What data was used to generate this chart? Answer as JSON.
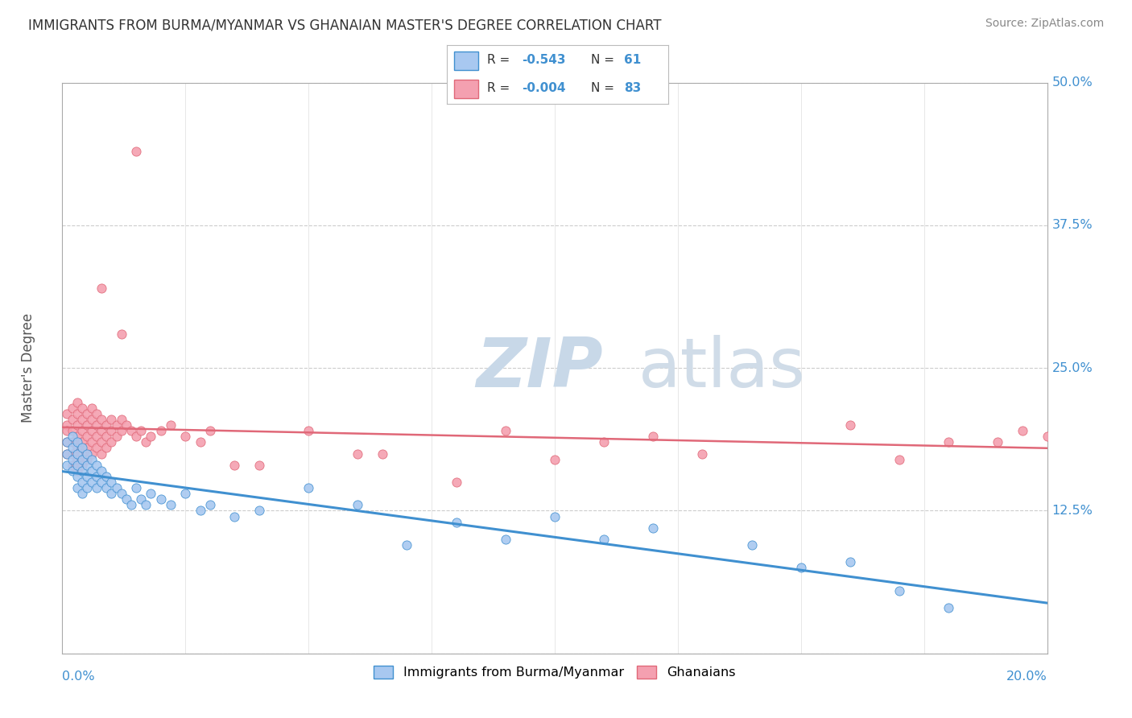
{
  "title": "IMMIGRANTS FROM BURMA/MYANMAR VS GHANAIAN MASTER'S DEGREE CORRELATION CHART",
  "source": "Source: ZipAtlas.com",
  "legend_label1": "Immigrants from Burma/Myanmar",
  "legend_label2": "Ghanaians",
  "R1": -0.543,
  "N1": 61,
  "R2": -0.004,
  "N2": 83,
  "color_blue": "#a8c8f0",
  "color_pink": "#f4a0b0",
  "color_blue_line": "#4090d0",
  "color_pink_line": "#e06878",
  "color_title": "#333333",
  "color_axis_label": "#4090d0",
  "color_source": "#888888",
  "background": "#ffffff",
  "xmin": 0.0,
  "xmax": 0.2,
  "ymin": 0.0,
  "ymax": 0.5,
  "blue_x": [
    0.001,
    0.001,
    0.001,
    0.002,
    0.002,
    0.002,
    0.002,
    0.003,
    0.003,
    0.003,
    0.003,
    0.003,
    0.004,
    0.004,
    0.004,
    0.004,
    0.004,
    0.005,
    0.005,
    0.005,
    0.005,
    0.006,
    0.006,
    0.006,
    0.007,
    0.007,
    0.007,
    0.008,
    0.008,
    0.009,
    0.009,
    0.01,
    0.01,
    0.011,
    0.012,
    0.013,
    0.014,
    0.015,
    0.016,
    0.017,
    0.018,
    0.02,
    0.022,
    0.025,
    0.028,
    0.03,
    0.035,
    0.04,
    0.05,
    0.06,
    0.07,
    0.08,
    0.09,
    0.1,
    0.11,
    0.12,
    0.14,
    0.15,
    0.16,
    0.17,
    0.18
  ],
  "blue_y": [
    0.185,
    0.175,
    0.165,
    0.19,
    0.18,
    0.17,
    0.16,
    0.185,
    0.175,
    0.165,
    0.155,
    0.145,
    0.18,
    0.17,
    0.16,
    0.15,
    0.14,
    0.175,
    0.165,
    0.155,
    0.145,
    0.17,
    0.16,
    0.15,
    0.165,
    0.155,
    0.145,
    0.16,
    0.15,
    0.155,
    0.145,
    0.15,
    0.14,
    0.145,
    0.14,
    0.135,
    0.13,
    0.145,
    0.135,
    0.13,
    0.14,
    0.135,
    0.13,
    0.14,
    0.125,
    0.13,
    0.12,
    0.125,
    0.145,
    0.13,
    0.095,
    0.115,
    0.1,
    0.12,
    0.1,
    0.11,
    0.095,
    0.075,
    0.08,
    0.055,
    0.04
  ],
  "pink_x": [
    0.001,
    0.001,
    0.001,
    0.001,
    0.001,
    0.002,
    0.002,
    0.002,
    0.002,
    0.002,
    0.002,
    0.003,
    0.003,
    0.003,
    0.003,
    0.003,
    0.003,
    0.003,
    0.004,
    0.004,
    0.004,
    0.004,
    0.004,
    0.004,
    0.005,
    0.005,
    0.005,
    0.005,
    0.005,
    0.006,
    0.006,
    0.006,
    0.006,
    0.006,
    0.007,
    0.007,
    0.007,
    0.007,
    0.008,
    0.008,
    0.008,
    0.008,
    0.009,
    0.009,
    0.009,
    0.01,
    0.01,
    0.01,
    0.011,
    0.011,
    0.012,
    0.012,
    0.013,
    0.014,
    0.015,
    0.016,
    0.017,
    0.018,
    0.02,
    0.022,
    0.025,
    0.028,
    0.03,
    0.035,
    0.04,
    0.05,
    0.06,
    0.065,
    0.08,
    0.09,
    0.1,
    0.11,
    0.12,
    0.13,
    0.16,
    0.17,
    0.18,
    0.19,
    0.195,
    0.2,
    0.015,
    0.012,
    0.008
  ],
  "pink_y": [
    0.21,
    0.2,
    0.195,
    0.185,
    0.175,
    0.215,
    0.205,
    0.195,
    0.185,
    0.175,
    0.165,
    0.22,
    0.21,
    0.2,
    0.19,
    0.18,
    0.17,
    0.16,
    0.215,
    0.205,
    0.195,
    0.185,
    0.175,
    0.165,
    0.21,
    0.2,
    0.19,
    0.18,
    0.17,
    0.215,
    0.205,
    0.195,
    0.185,
    0.175,
    0.21,
    0.2,
    0.19,
    0.18,
    0.205,
    0.195,
    0.185,
    0.175,
    0.2,
    0.19,
    0.18,
    0.205,
    0.195,
    0.185,
    0.2,
    0.19,
    0.205,
    0.195,
    0.2,
    0.195,
    0.19,
    0.195,
    0.185,
    0.19,
    0.195,
    0.2,
    0.19,
    0.185,
    0.195,
    0.165,
    0.165,
    0.195,
    0.175,
    0.175,
    0.15,
    0.195,
    0.17,
    0.185,
    0.19,
    0.175,
    0.2,
    0.17,
    0.185,
    0.185,
    0.195,
    0.19,
    0.44,
    0.28,
    0.32
  ],
  "ytick_positions": [
    0.0,
    0.125,
    0.25,
    0.375,
    0.5
  ],
  "ytick_labels": [
    "",
    "12.5%",
    "25.0%",
    "37.5%",
    "50.0%"
  ],
  "xtick_labels_left": "0.0%",
  "xtick_labels_right": "20.0%",
  "ylabel_label": "Master's Degree",
  "watermark_zip": "ZIP",
  "watermark_atlas": "atlas"
}
